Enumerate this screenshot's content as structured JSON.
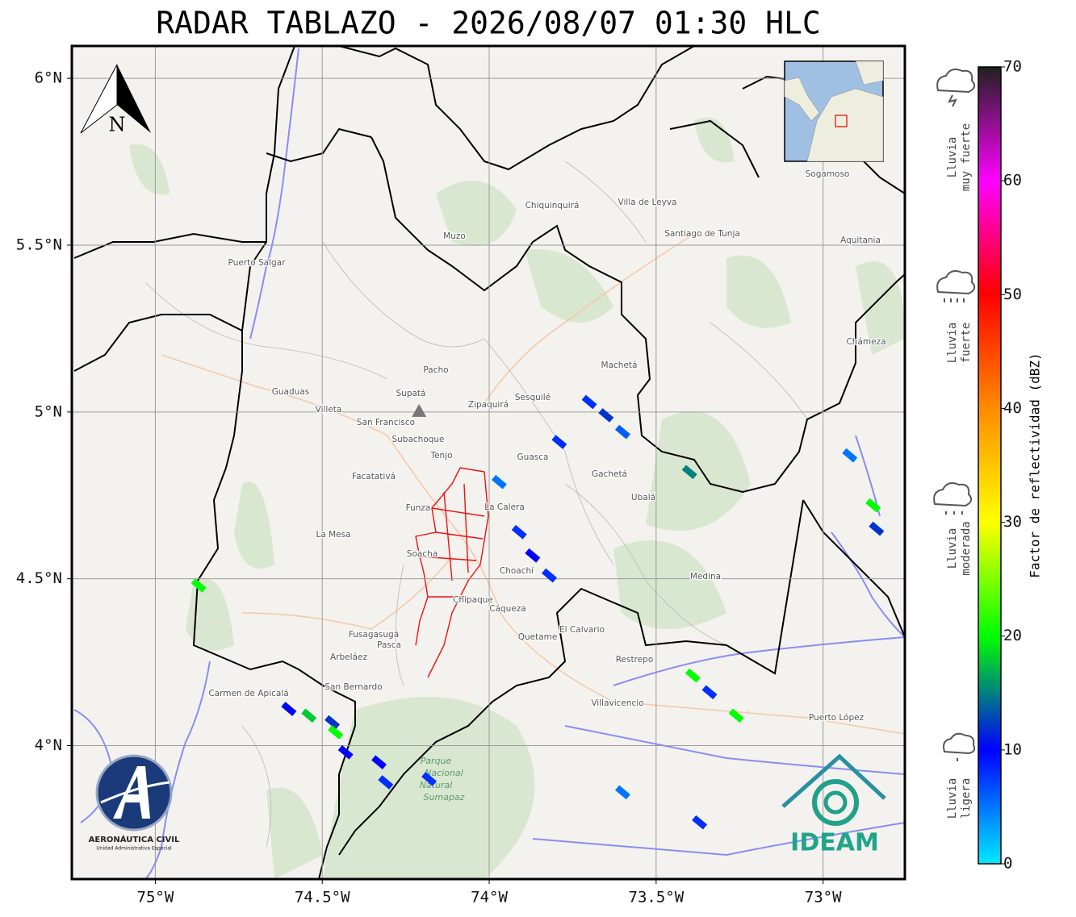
{
  "title": "RADAR TABLAZO - 2026/08/07 01:30 HLC",
  "map": {
    "xlim": [
      -75.25,
      -72.755
    ],
    "ylim": [
      3.6,
      6.097
    ],
    "xticks": [
      {
        "value": -75,
        "label": "75°W"
      },
      {
        "value": -74.5,
        "label": "74.5°W"
      },
      {
        "value": -74,
        "label": "74°W"
      },
      {
        "value": -73.5,
        "label": "73.5°W"
      },
      {
        "value": -73,
        "label": "73°W"
      }
    ],
    "yticks": [
      {
        "value": 4,
        "label": "4°N"
      },
      {
        "value": 4.5,
        "label": "4.5°N"
      },
      {
        "value": 5,
        "label": "5°N"
      },
      {
        "value": 5.5,
        "label": "5.5°N"
      },
      {
        "value": 6,
        "label": "6°N"
      }
    ],
    "grid": true,
    "north_label": "N",
    "radar_site": {
      "lon": -74.21,
      "lat": 5.0
    },
    "echoes": [
      {
        "lon": -73.7,
        "lat": 5.03,
        "dbz": 8
      },
      {
        "lon": -73.65,
        "lat": 4.99,
        "dbz": 12
      },
      {
        "lon": -73.6,
        "lat": 4.94,
        "dbz": 6
      },
      {
        "lon": -73.79,
        "lat": 4.91,
        "dbz": 8
      },
      {
        "lon": -73.91,
        "lat": 4.64,
        "dbz": 8
      },
      {
        "lon": -73.87,
        "lat": 4.57,
        "dbz": 10
      },
      {
        "lon": -73.82,
        "lat": 4.51,
        "dbz": 8
      },
      {
        "lon": -73.97,
        "lat": 4.79,
        "dbz": 5
      },
      {
        "lon": -73.4,
        "lat": 4.82,
        "dbz": 15
      },
      {
        "lon": -72.85,
        "lat": 4.72,
        "dbz": 20
      },
      {
        "lon": -72.84,
        "lat": 4.65,
        "dbz": 12
      },
      {
        "lon": -74.87,
        "lat": 4.48,
        "dbz": 20
      },
      {
        "lon": -74.6,
        "lat": 4.11,
        "dbz": 10
      },
      {
        "lon": -74.54,
        "lat": 4.09,
        "dbz": 18
      },
      {
        "lon": -74.47,
        "lat": 4.07,
        "dbz": 12
      },
      {
        "lon": -74.46,
        "lat": 4.04,
        "dbz": 20
      },
      {
        "lon": -74.43,
        "lat": 3.98,
        "dbz": 10
      },
      {
        "lon": -74.33,
        "lat": 3.95,
        "dbz": 10
      },
      {
        "lon": -74.31,
        "lat": 3.89,
        "dbz": 8
      },
      {
        "lon": -74.18,
        "lat": 3.9,
        "dbz": 8
      },
      {
        "lon": -73.39,
        "lat": 4.21,
        "dbz": 20
      },
      {
        "lon": -73.34,
        "lat": 4.16,
        "dbz": 8
      },
      {
        "lon": -73.26,
        "lat": 4.09,
        "dbz": 20
      },
      {
        "lon": -73.6,
        "lat": 3.86,
        "dbz": 5
      },
      {
        "lon": -73.37,
        "lat": 3.77,
        "dbz": 8
      },
      {
        "lon": -72.92,
        "lat": 4.87,
        "dbz": 5
      }
    ],
    "places": [
      "Villa de Leyva",
      "Santiago de Tunja",
      "Zipaquirá",
      "Villavicencio",
      "Facatativá",
      "Fusagasugá",
      "La Calera",
      "Sogamoso",
      "Pacho",
      "Chiquinquirá",
      "La Mesa",
      "Soacha",
      "Gachetá",
      "Medina",
      "Restrepo",
      "Cáqueza",
      "Supatá",
      "San Francisco",
      "Subachoque",
      "Funza",
      "Tenjo",
      "Guasca",
      "Ubalá",
      "Choachí",
      "Chipaque",
      "Quetame",
      "El Calvario",
      "Puerto López",
      "Pasca",
      "Arbeláez",
      "San Bernardo",
      "Carmen de Apicalá",
      "Guaduas",
      "Villeta",
      "Muzo",
      "Sesquilé",
      "Machetá",
      "Aquitania",
      "Chámeza",
      "Puerto Salgar"
    ],
    "park_label": [
      "Parque",
      "Nacional",
      "Natural",
      "Sumapaz"
    ]
  },
  "colorbar": {
    "label": "Factor de reflectividad (dBZ)",
    "lim": [
      0,
      70
    ],
    "ticks": [
      0,
      10,
      20,
      30,
      40,
      50,
      60,
      70
    ],
    "colors": [
      "#00eaff",
      "#0000ff",
      "#00ff00",
      "#ffff00",
      "#ff8c00",
      "#ff0000",
      "#ff00ff",
      "#202020"
    ]
  },
  "rain_categories": [
    {
      "lines": [
        "Lluvia",
        "muy fuerte"
      ]
    },
    {
      "lines": [
        "Lluvia",
        "fuerte"
      ]
    },
    {
      "lines": [
        "Lluvia",
        "moderada"
      ]
    },
    {
      "lines": [
        "Lluvia",
        "ligera"
      ]
    }
  ],
  "logos": {
    "aerocivil": [
      "AERONÁUTICA CIVIL",
      "Unidad Administrativa Especial"
    ],
    "ideam": "IDEAM"
  }
}
